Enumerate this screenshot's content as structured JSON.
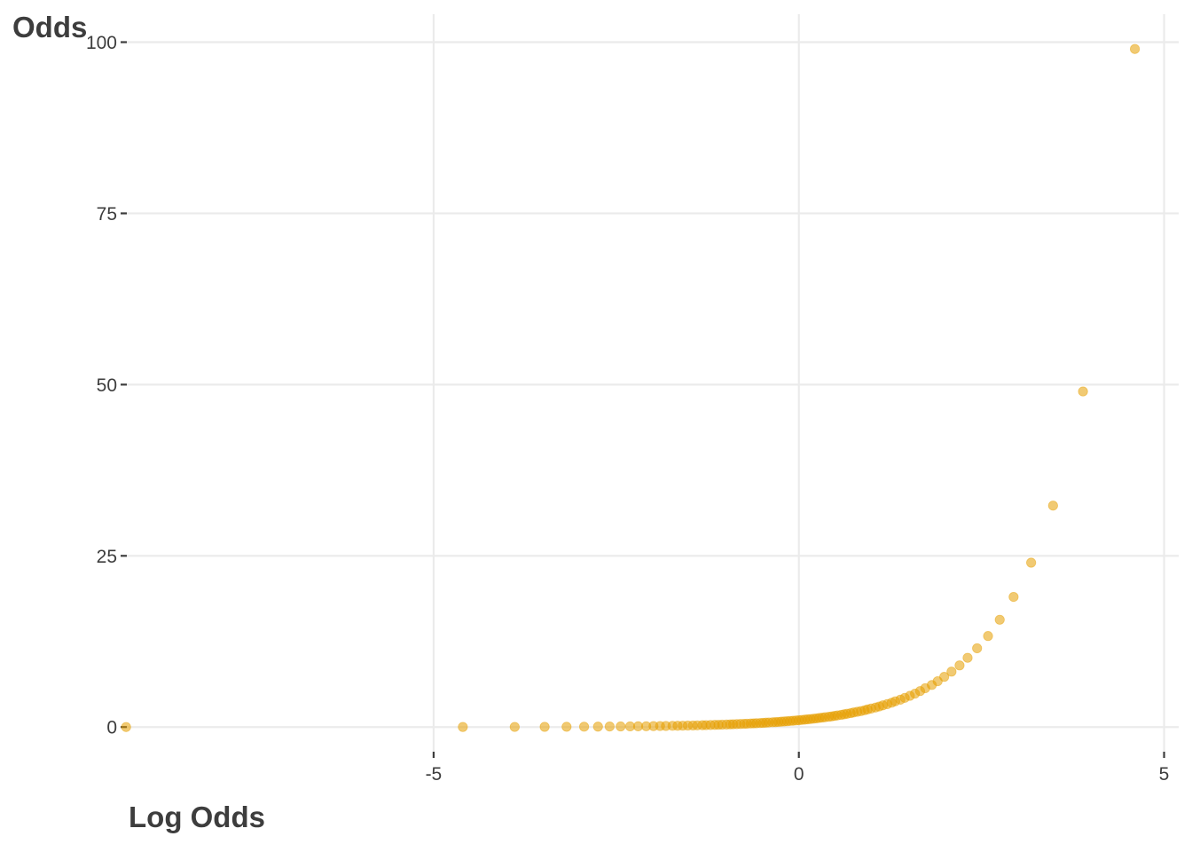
{
  "chart_data": {
    "type": "scatter",
    "title": "",
    "xlabel": "Log Odds",
    "ylabel": "Odds",
    "xlim": [
      -9.2,
      5.2
    ],
    "ylim": [
      -3.6,
      104.6
    ],
    "x_ticks": [
      -5,
      0,
      5
    ],
    "y_ticks": [
      0,
      25,
      50,
      75,
      100
    ],
    "x_tick_labels": [
      "-5",
      "0",
      "5"
    ],
    "y_tick_labels": [
      "0",
      "25",
      "50",
      "75",
      "100"
    ],
    "grid": true,
    "legend": "none",
    "point_color": "#E69F00",
    "point_opacity": 0.55,
    "series": [
      {
        "x": [
          -9.21,
          -4.6,
          -3.89,
          -3.48,
          -3.18,
          -2.94,
          -2.75,
          -2.59,
          -2.44,
          -2.31,
          -2.2,
          -2.09,
          -1.99,
          -1.9,
          -1.82,
          -1.73,
          -1.66,
          -1.59,
          -1.52,
          -1.45,
          -1.39,
          -1.32,
          -1.27,
          -1.21,
          -1.15,
          -1.1,
          -1.05,
          -0.99,
          -0.94,
          -0.9,
          -0.85,
          -0.8,
          -0.75,
          -0.71,
          -0.66,
          -0.62,
          -0.58,
          -0.53,
          -0.49,
          -0.45,
          -0.41,
          -0.36,
          -0.32,
          -0.28,
          -0.24,
          -0.2,
          -0.16,
          -0.12,
          -0.08,
          -0.04,
          0.0,
          0.04,
          0.08,
          0.12,
          0.16,
          0.2,
          0.24,
          0.28,
          0.32,
          0.36,
          0.41,
          0.45,
          0.49,
          0.53,
          0.58,
          0.62,
          0.66,
          0.71,
          0.75,
          0.8,
          0.85,
          0.9,
          0.94,
          0.99,
          1.05,
          1.1,
          1.15,
          1.21,
          1.27,
          1.32,
          1.39,
          1.45,
          1.52,
          1.59,
          1.66,
          1.73,
          1.82,
          1.9,
          1.99,
          2.09,
          2.2,
          2.31,
          2.44,
          2.59,
          2.75,
          2.94,
          3.18,
          3.48,
          3.89,
          4.6
        ],
        "y": [
          0.0,
          0.01,
          0.02,
          0.03,
          0.04,
          0.05,
          0.06,
          0.08,
          0.09,
          0.1,
          0.11,
          0.12,
          0.14,
          0.15,
          0.16,
          0.18,
          0.19,
          0.2,
          0.22,
          0.23,
          0.25,
          0.27,
          0.28,
          0.3,
          0.32,
          0.33,
          0.35,
          0.37,
          0.39,
          0.41,
          0.43,
          0.45,
          0.47,
          0.49,
          0.52,
          0.54,
          0.56,
          0.59,
          0.61,
          0.64,
          0.67,
          0.7,
          0.72,
          0.75,
          0.79,
          0.82,
          0.85,
          0.89,
          0.92,
          0.96,
          1.0,
          1.04,
          1.08,
          1.13,
          1.17,
          1.22,
          1.27,
          1.33,
          1.38,
          1.44,
          1.5,
          1.56,
          1.63,
          1.7,
          1.78,
          1.86,
          1.94,
          2.03,
          2.13,
          2.23,
          2.33,
          2.45,
          2.57,
          2.7,
          2.85,
          3.0,
          3.17,
          3.35,
          3.55,
          3.76,
          4.0,
          4.26,
          4.56,
          4.88,
          5.25,
          5.67,
          6.14,
          6.69,
          7.33,
          8.09,
          9.0,
          10.11,
          11.5,
          13.29,
          15.67,
          19.0,
          24.0,
          32.33,
          49.0,
          99.0
        ]
      }
    ]
  }
}
